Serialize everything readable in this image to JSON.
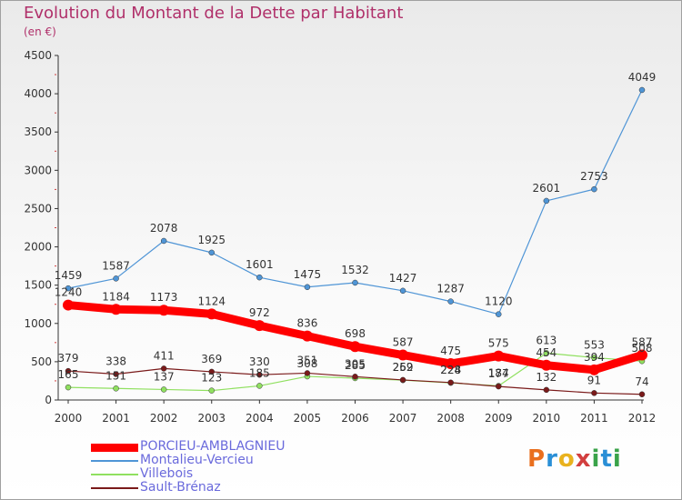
{
  "header": {
    "title": "Evolution du Montant de la Dette par Habitant",
    "unit": "(en €)"
  },
  "logo_text": "Proxiti",
  "chart_data": {
    "type": "line",
    "title": "Evolution du Montant de la Dette par Habitant",
    "subtitle": "(en €)",
    "xlabel": "",
    "ylabel": "",
    "x": [
      "2000",
      "2001",
      "2002",
      "2003",
      "2004",
      "2005",
      "2006",
      "2007",
      "2008",
      "2009",
      "2010",
      "2011",
      "2012"
    ],
    "ylim": [
      0,
      4500
    ],
    "yticks": [
      0,
      500,
      1000,
      1500,
      2000,
      2500,
      3000,
      3500,
      4000,
      4500
    ],
    "grid": false,
    "legend_position": "bottom-left",
    "series": [
      {
        "name": "PORCIEU-AMBLAGNIEU",
        "color": "#ff0000",
        "values": [
          1240,
          1184,
          1173,
          1124,
          972,
          836,
          698,
          587,
          475,
          575,
          454,
          394,
          587
        ]
      },
      {
        "name": "Montalieu-Vercieu",
        "color": "#4f95d6",
        "values": [
          1459,
          1587,
          2078,
          1925,
          1601,
          1475,
          1532,
          1427,
          1287,
          1120,
          2601,
          2753,
          4049
        ]
      },
      {
        "name": "Villebois",
        "color": "#90e060",
        "values": [
          165,
          151,
          137,
          123,
          185,
          308,
          285,
          259,
          224,
          184,
          613,
          553,
          508
        ]
      },
      {
        "name": "Sault-Brénaz",
        "color": "#7a1a1a",
        "values": [
          379,
          338,
          411,
          369,
          330,
          351,
          305,
          262,
          228,
          177,
          132,
          91,
          74
        ]
      }
    ]
  }
}
